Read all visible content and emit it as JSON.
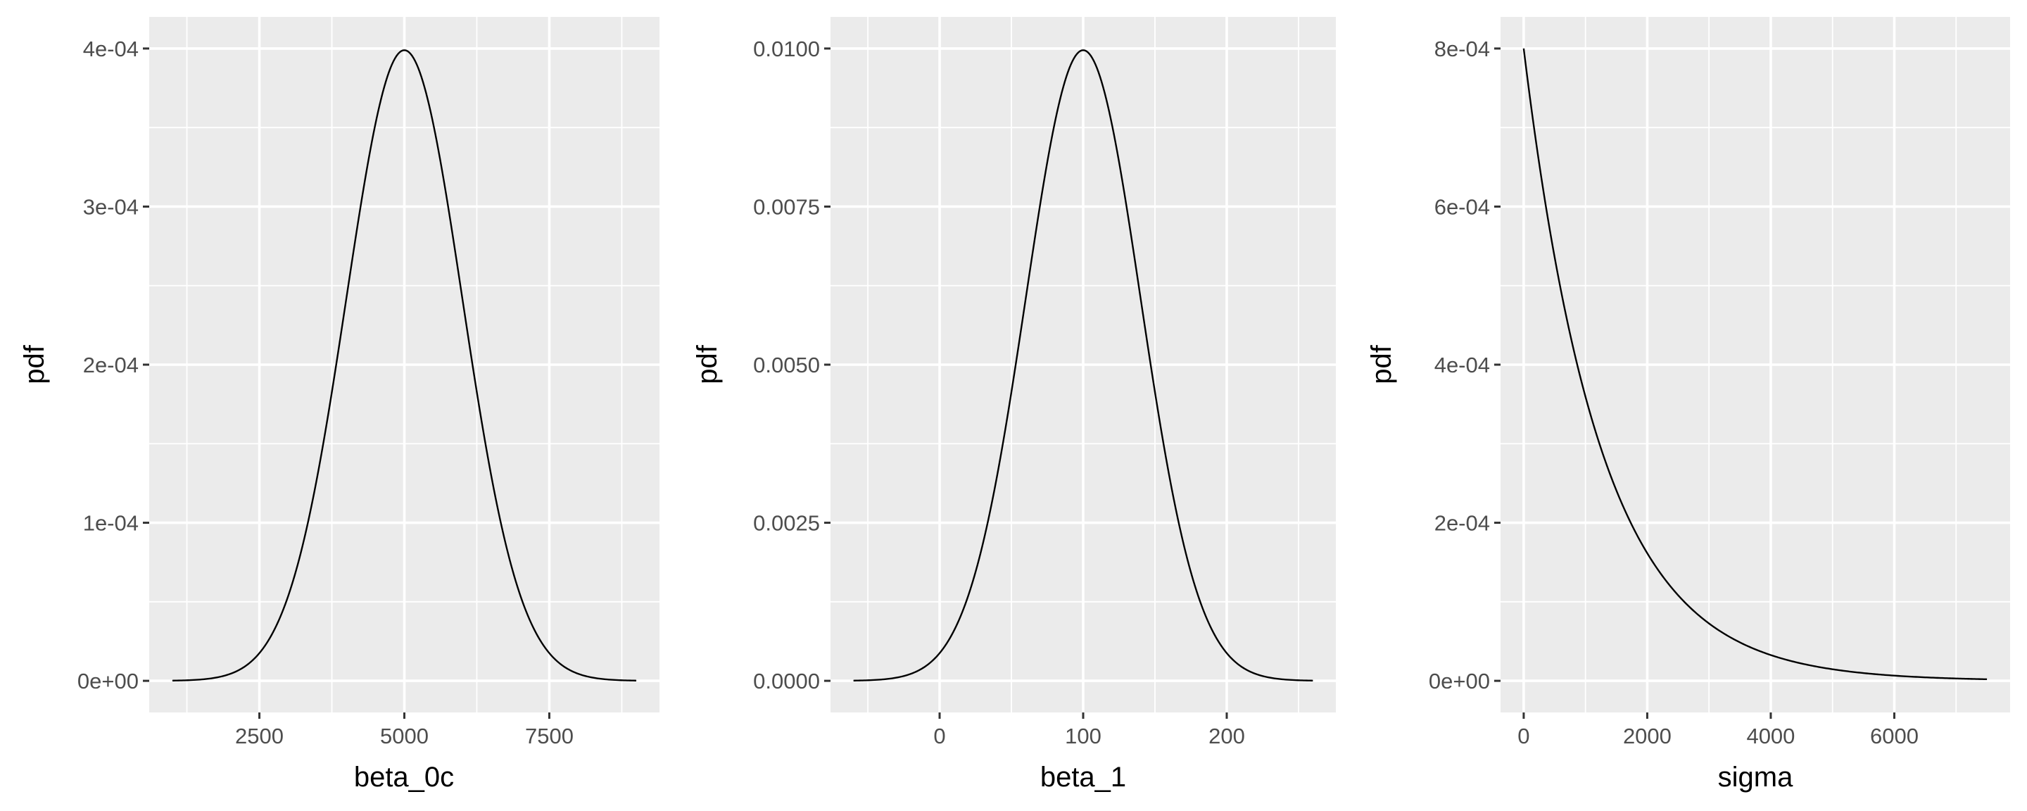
{
  "chart_data": [
    {
      "type": "line",
      "xlabel": "beta_0c",
      "ylabel": "pdf",
      "distribution": "normal",
      "params": {
        "mean": 5000,
        "sd": 1000
      },
      "xlim": [
        1000,
        9000
      ],
      "ylim": [
        0,
        0.0004
      ],
      "x_ticks": [
        2500,
        5000,
        7500
      ],
      "x_tick_labels": [
        "2500",
        "5000",
        "7500"
      ],
      "y_ticks": [
        0,
        0.0001,
        0.0002,
        0.0003,
        0.0004
      ],
      "y_tick_labels": [
        "0e+00",
        "1e-04",
        "2e-04",
        "3e-04",
        "4e-04"
      ],
      "points": [
        [
          1000,
          1e-07
        ],
        [
          2000,
          4.4e-06
        ],
        [
          2500,
          1.75e-05
        ],
        [
          3000,
          5.4e-05
        ],
        [
          3500,
          0.00013
        ],
        [
          4000,
          0.000242
        ],
        [
          4500,
          0.000352
        ],
        [
          5000,
          0.000399
        ],
        [
          5500,
          0.000352
        ],
        [
          6000,
          0.000242
        ],
        [
          6500,
          0.00013
        ],
        [
          7000,
          5.4e-05
        ],
        [
          7500,
          1.75e-05
        ],
        [
          8000,
          4.4e-06
        ],
        [
          9000,
          1e-07
        ]
      ],
      "grid": true
    },
    {
      "type": "line",
      "xlabel": "beta_1",
      "ylabel": "pdf",
      "distribution": "normal",
      "params": {
        "mean": 100,
        "sd": 40
      },
      "xlim": [
        -60,
        260
      ],
      "ylim": [
        0,
        0.01
      ],
      "x_ticks": [
        0,
        100,
        200
      ],
      "x_tick_labels": [
        "0",
        "100",
        "200"
      ],
      "y_ticks": [
        0,
        0.0025,
        0.005,
        0.0075,
        0.01
      ],
      "y_tick_labels": [
        "0.0000",
        "0.0025",
        "0.0050",
        "0.0075",
        "0.0100"
      ],
      "points": [
        [
          -60,
          3.4e-06
        ],
        [
          -20,
          0.00011
        ],
        [
          0,
          0.00044
        ],
        [
          20,
          0.0013
        ],
        [
          40,
          0.0032
        ],
        [
          60,
          0.006
        ],
        [
          80,
          0.0088
        ],
        [
          100,
          0.00997
        ],
        [
          120,
          0.0088
        ],
        [
          140,
          0.006
        ],
        [
          160,
          0.0032
        ],
        [
          180,
          0.0013
        ],
        [
          200,
          0.00044
        ],
        [
          220,
          0.00011
        ],
        [
          260,
          3.4e-06
        ]
      ],
      "grid": true
    },
    {
      "type": "line",
      "xlabel": "sigma",
      "ylabel": "pdf",
      "distribution": "exponential",
      "params": {
        "rate": 0.0008
      },
      "xlim": [
        0,
        7500
      ],
      "ylim": [
        0,
        0.0008
      ],
      "x_ticks": [
        0,
        2000,
        4000,
        6000
      ],
      "x_tick_labels": [
        "0",
        "2000",
        "4000",
        "6000"
      ],
      "y_ticks": [
        0,
        0.0002,
        0.0004,
        0.0006,
        0.0008
      ],
      "y_tick_labels": [
        "0e+00",
        "2e-04",
        "4e-04",
        "6e-04",
        "8e-04"
      ],
      "points": [
        [
          0,
          0.0008
        ],
        [
          500,
          0.000536
        ],
        [
          1000,
          0.000359
        ],
        [
          1500,
          0.000241
        ],
        [
          2000,
          0.000162
        ],
        [
          3000,
          7.26e-05
        ],
        [
          4000,
          3.26e-05
        ],
        [
          5000,
          1.47e-05
        ],
        [
          6000,
          6.6e-06
        ],
        [
          7500,
          2e-06
        ]
      ],
      "grid": true
    }
  ]
}
